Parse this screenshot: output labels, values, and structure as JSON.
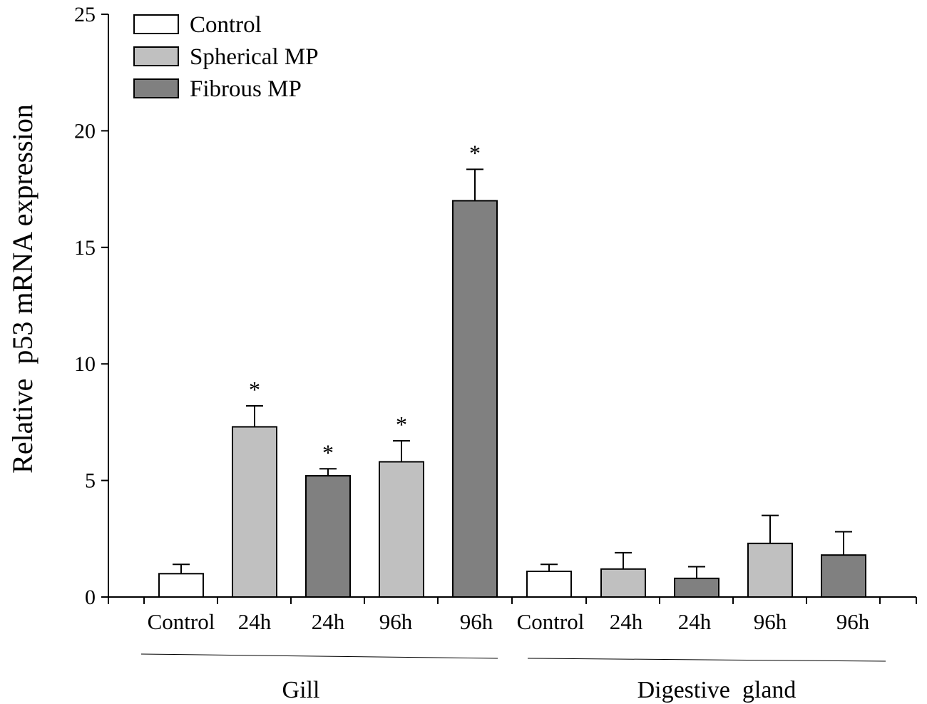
{
  "chart_data": {
    "type": "bar",
    "ylabel": "Relative  p53 mRNA expression",
    "ylim": [
      0,
      25
    ],
    "yticks": [
      0,
      5,
      10,
      15,
      20,
      25
    ],
    "grid": false,
    "legend_position": "top-left",
    "colors": {
      "Control": "#ffffff",
      "Spherical MP": "#c0c0c0",
      "Fibrous MP": "#808080"
    },
    "legend": [
      "Control",
      "Spherical MP",
      "Fibrous MP"
    ],
    "groups": [
      {
        "label": "Gill",
        "bars": [
          {
            "category": "Control",
            "series": "Control",
            "value": 1.0,
            "error": 0.4,
            "significant": false
          },
          {
            "category": "24h",
            "series": "Spherical MP",
            "value": 7.3,
            "error": 0.9,
            "significant": true
          },
          {
            "category": "24h",
            "series": "Fibrous MP",
            "value": 5.2,
            "error": 0.3,
            "significant": true
          },
          {
            "category": "96h",
            "series": "Spherical MP",
            "value": 5.8,
            "error": 0.9,
            "significant": true
          },
          {
            "category": "96h",
            "series": "Fibrous MP",
            "value": 17.0,
            "error": 1.35,
            "significant": true
          }
        ]
      },
      {
        "label": "Digestive  gland",
        "bars": [
          {
            "category": "Control",
            "series": "Control",
            "value": 1.1,
            "error": 0.3,
            "significant": false
          },
          {
            "category": "24h",
            "series": "Spherical MP",
            "value": 1.2,
            "error": 0.7,
            "significant": false
          },
          {
            "category": "24h",
            "series": "Fibrous MP",
            "value": 0.8,
            "error": 0.5,
            "significant": false
          },
          {
            "category": "96h",
            "series": "Spherical MP",
            "value": 2.3,
            "error": 1.2,
            "significant": false
          },
          {
            "category": "96h",
            "series": "Fibrous MP",
            "value": 1.8,
            "error": 1.0,
            "significant": false
          }
        ]
      }
    ],
    "significance_marker": "*"
  }
}
